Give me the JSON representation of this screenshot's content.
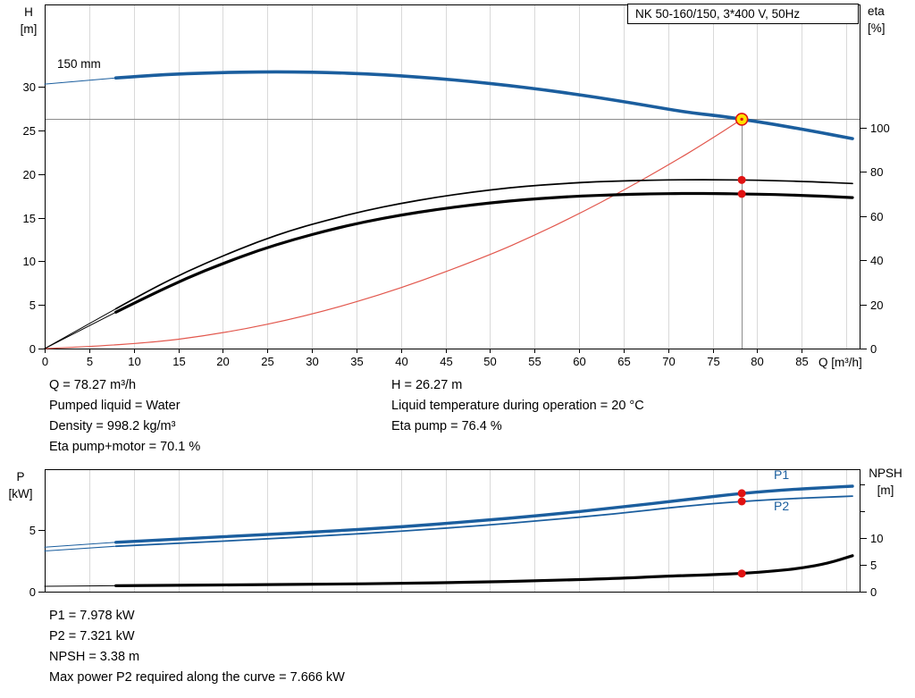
{
  "title_box": "NK 50-160/150, 3*400 V, 50Hz",
  "colors": {
    "grid": "#d9d9d9",
    "ref_line": "#8c8c8c",
    "dot_red": "#e01212",
    "duty_fill": "#ffe000",
    "blue": "#1b5e9e",
    "red_curve": "#e2574d"
  },
  "info_top": {
    "left": [
      "Q = 78.27 m³/h",
      "Pumped liquid = Water",
      "Density = 998.2 kg/m³",
      "Eta pump+motor = 70.1 %"
    ],
    "right": [
      "H = 26.27 m",
      "Liquid temperature during operation = 20 °C",
      "Eta pump = 76.4 %"
    ]
  },
  "info_bottom": [
    "P1 = 7.978 kW",
    "P2 = 7.321 kW",
    "NPSH = 3.38 m",
    "Max power P2 required along the curve = 7.666 kW"
  ],
  "chart_data": [
    {
      "id": "hq",
      "type": "line",
      "title": "NK 50-160/150, 3*400 V, 50Hz",
      "impeller_label": "150 mm",
      "x_axis": {
        "label": "Q [m³/h]",
        "min": 0,
        "max": 91.5,
        "ticks": [
          0,
          5,
          10,
          15,
          20,
          25,
          30,
          35,
          40,
          45,
          50,
          55,
          60,
          65,
          70,
          75,
          80,
          85
        ],
        "grid_step": 5,
        "grid_to": 90
      },
      "y_left": {
        "title": "H",
        "unit": "[m]",
        "min": 0,
        "max": 39.42,
        "ticks": [
          0,
          5,
          10,
          15,
          20,
          25,
          30
        ]
      },
      "y_right": {
        "title": "eta",
        "unit": "[%]",
        "min": 0,
        "max": 155.9,
        "ticks": [
          0,
          20,
          40,
          60,
          80,
          100
        ]
      },
      "duty_point": {
        "q": 78.27,
        "h": 26.27,
        "eta_pump": 76.4,
        "eta_pump_motor": 70.1
      },
      "series": [
        {
          "name": "system-curve",
          "axis": "left",
          "color": "#e2574d",
          "width": 1.2,
          "points": [
            [
              0,
              0
            ],
            [
              10,
              0.43
            ],
            [
              20,
              1.71
            ],
            [
              30,
              3.86
            ],
            [
              40,
              6.86
            ],
            [
              50,
              10.72
            ],
            [
              55,
              12.97
            ],
            [
              60,
              15.44
            ],
            [
              65,
              18.12
            ],
            [
              70,
              21.01
            ],
            [
              74,
              23.48
            ],
            [
              78.27,
              26.27
            ]
          ]
        },
        {
          "name": "eta-pump-curve",
          "axis": "right",
          "color": "#000000",
          "width": 1.7,
          "thin_until": 8,
          "points": [
            [
              0,
              0
            ],
            [
              8,
              18
            ],
            [
              12,
              27
            ],
            [
              16,
              35
            ],
            [
              20,
              42
            ],
            [
              24,
              48.5
            ],
            [
              28,
              54
            ],
            [
              32,
              58.5
            ],
            [
              36,
              62.5
            ],
            [
              40,
              65.8
            ],
            [
              44,
              68.6
            ],
            [
              48,
              70.9
            ],
            [
              52,
              72.8
            ],
            [
              56,
              74.2
            ],
            [
              60,
              75.2
            ],
            [
              64,
              75.9
            ],
            [
              68,
              76.3
            ],
            [
              72,
              76.5
            ],
            [
              76,
              76.45
            ],
            [
              78.27,
              76.4
            ],
            [
              82,
              76.1
            ],
            [
              86,
              75.6
            ],
            [
              90.7,
              74.8
            ]
          ]
        },
        {
          "name": "eta-pump-motor-curve",
          "axis": "right",
          "color": "#000000",
          "width": 3.2,
          "thin_until": 8,
          "points": [
            [
              0,
              0
            ],
            [
              8,
              16.5
            ],
            [
              12,
              24.5
            ],
            [
              16,
              32
            ],
            [
              20,
              38.5
            ],
            [
              24,
              44.5
            ],
            [
              28,
              49.5
            ],
            [
              32,
              53.8
            ],
            [
              36,
              57.5
            ],
            [
              40,
              60.5
            ],
            [
              44,
              63
            ],
            [
              48,
              65.1
            ],
            [
              52,
              66.8
            ],
            [
              56,
              68.1
            ],
            [
              60,
              69.1
            ],
            [
              64,
              69.7
            ],
            [
              68,
              70.1
            ],
            [
              72,
              70.3
            ],
            [
              76,
              70.2
            ],
            [
              78.27,
              70.1
            ],
            [
              82,
              69.8
            ],
            [
              86,
              69.3
            ],
            [
              90.7,
              68.4
            ]
          ]
        },
        {
          "name": "head-curve",
          "axis": "left",
          "color": "#1b5e9e",
          "width": 3.6,
          "thin_until": 8,
          "points": [
            [
              0,
              30.3
            ],
            [
              5,
              30.75
            ],
            [
              8,
              31.0
            ],
            [
              12,
              31.3
            ],
            [
              16,
              31.5
            ],
            [
              20,
              31.63
            ],
            [
              24,
              31.7
            ],
            [
              28,
              31.7
            ],
            [
              32,
              31.62
            ],
            [
              36,
              31.47
            ],
            [
              40,
              31.25
            ],
            [
              44,
              30.95
            ],
            [
              48,
              30.58
            ],
            [
              52,
              30.15
            ],
            [
              56,
              29.65
            ],
            [
              60,
              29.08
            ],
            [
              64,
              28.45
            ],
            [
              68,
              27.78
            ],
            [
              72,
              27.08
            ],
            [
              76,
              26.62
            ],
            [
              78.27,
              26.27
            ],
            [
              82,
              25.68
            ],
            [
              86,
              24.95
            ],
            [
              90.7,
              24.05
            ]
          ]
        }
      ],
      "reference": {
        "hline_y": 26.27,
        "vline_x": 78.27,
        "vline_y_top": 26.27
      },
      "markers": [
        {
          "x": 78.27,
          "y": 76.4,
          "axis": "right",
          "type": "dot"
        },
        {
          "x": 78.27,
          "y": 70.1,
          "axis": "right",
          "type": "dot"
        },
        {
          "x": 78.27,
          "y": 26.27,
          "axis": "left",
          "type": "duty"
        }
      ]
    },
    {
      "id": "power-npsh",
      "type": "line",
      "x_axis": {
        "label": "",
        "min": 0,
        "max": 91.5,
        "ticks": [],
        "grid_step": 5,
        "grid_to": 90
      },
      "y_left": {
        "title": "P",
        "unit": "[kW]",
        "min": 0,
        "max": 9.93,
        "ticks": [
          0,
          5
        ]
      },
      "y_right": {
        "title": "NPSH",
        "unit": "[m]",
        "min": 0,
        "max": 22.83,
        "ticks": [
          0,
          5,
          10
        ],
        "minor_ticks": [
          15,
          20
        ]
      },
      "duty_point": {
        "q": 78.27,
        "p1": 7.978,
        "p2": 7.321,
        "npsh": 3.38
      },
      "series": [
        {
          "name": "p1-curve",
          "axis": "left",
          "color": "#1b5e9e",
          "width": 3.4,
          "thin_until": 8,
          "points": [
            [
              0,
              3.6
            ],
            [
              8,
              4.0
            ],
            [
              16,
              4.3
            ],
            [
              24,
              4.6
            ],
            [
              32,
              4.9
            ],
            [
              40,
              5.25
            ],
            [
              48,
              5.7
            ],
            [
              56,
              6.2
            ],
            [
              64,
              6.8
            ],
            [
              72,
              7.45
            ],
            [
              78.27,
              7.978
            ],
            [
              84,
              8.3
            ],
            [
              88,
              8.45
            ],
            [
              90.7,
              8.55
            ]
          ]
        },
        {
          "name": "p2-curve",
          "axis": "left",
          "color": "#1b5e9e",
          "width": 1.8,
          "thin_until": 8,
          "points": [
            [
              0,
              3.3
            ],
            [
              8,
              3.68
            ],
            [
              16,
              3.95
            ],
            [
              24,
              4.25
            ],
            [
              32,
              4.55
            ],
            [
              40,
              4.9
            ],
            [
              48,
              5.3
            ],
            [
              56,
              5.78
            ],
            [
              64,
              6.3
            ],
            [
              72,
              6.95
            ],
            [
              78.27,
              7.321
            ],
            [
              84,
              7.55
            ],
            [
              88,
              7.67
            ],
            [
              90.7,
              7.75
            ]
          ]
        },
        {
          "name": "npsh-curve",
          "axis": "right",
          "color": "#000000",
          "width": 3.2,
          "thin_until": 8,
          "points": [
            [
              0,
              1.0
            ],
            [
              8,
              1.1
            ],
            [
              16,
              1.2
            ],
            [
              24,
              1.3
            ],
            [
              32,
              1.4
            ],
            [
              40,
              1.55
            ],
            [
              48,
              1.75
            ],
            [
              56,
              2.05
            ],
            [
              64,
              2.45
            ],
            [
              70,
              2.9
            ],
            [
              74,
              3.1
            ],
            [
              78.27,
              3.38
            ],
            [
              82,
              3.85
            ],
            [
              85,
              4.4
            ],
            [
              88,
              5.3
            ],
            [
              90.7,
              6.7
            ]
          ]
        }
      ],
      "markers": [
        {
          "x": 78.27,
          "y": 7.978,
          "axis": "left",
          "type": "dot"
        },
        {
          "x": 78.27,
          "y": 7.321,
          "axis": "left",
          "type": "dot"
        },
        {
          "x": 78.27,
          "y": 3.38,
          "axis": "right",
          "type": "dot"
        }
      ],
      "curve_labels": {
        "p1": "P1",
        "p2": "P2"
      }
    }
  ]
}
